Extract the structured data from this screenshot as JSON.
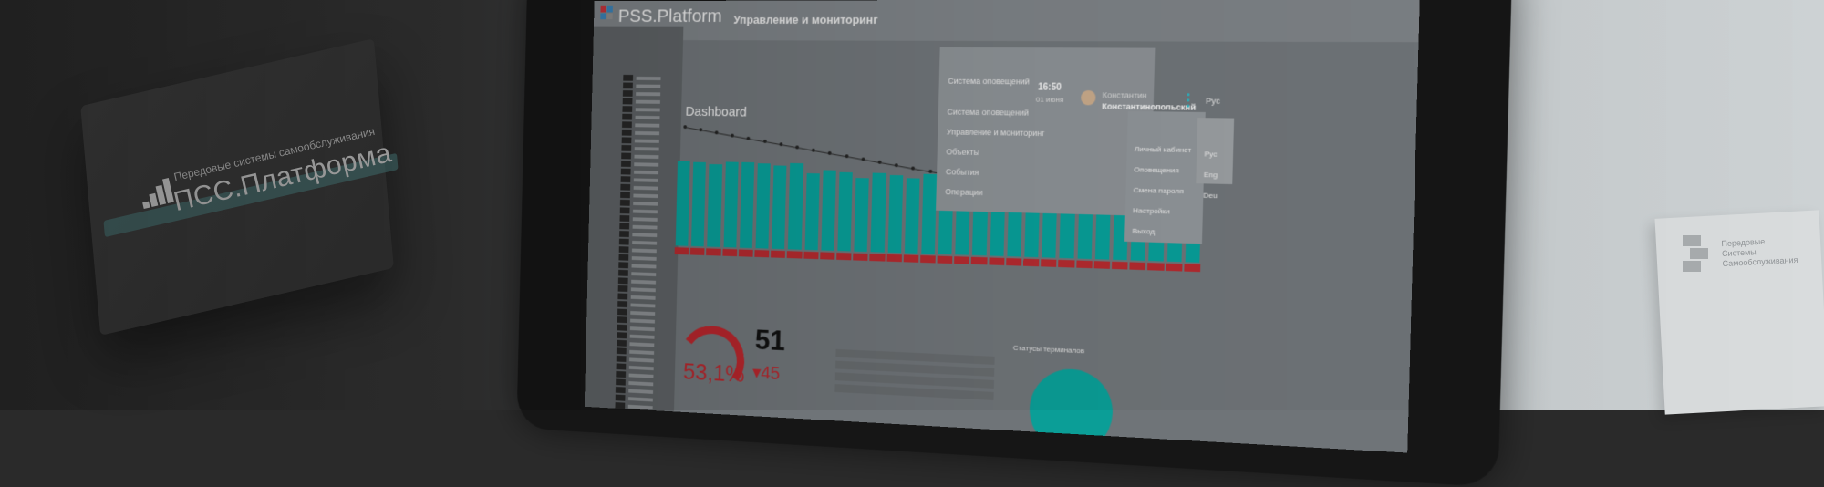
{
  "box": {
    "tagline": "Передовые системы самообслуживания",
    "brand": "ПСС.Платформа"
  },
  "app": {
    "title": "PSS.Platform",
    "page_title": "Управление и мониторинг",
    "dashboard_title": "Dashboard"
  },
  "header": {
    "menu_head": "Система оповещений",
    "time": "16:50",
    "date": "01 июня",
    "user_first": "Константин",
    "user_last": "Константинопольский",
    "lang_current": "Рус"
  },
  "main_menu": [
    "Система оповещений",
    "Управление и мониторинг",
    "Объекты",
    "События",
    "Операции"
  ],
  "user_menu": [
    "Личный кабинет",
    "Оповещения",
    "Смена пароля",
    "Настройки",
    "Выход"
  ],
  "languages": [
    "Рус",
    "Eng",
    "Deu"
  ],
  "kpi": {
    "percent": "53,1%",
    "count": "51",
    "delta": "▾45"
  },
  "status_title": "Статусы терминалов",
  "paper": {
    "name_l1": "Передовые",
    "name_l2": "Системы",
    "name_l3": "Самообслуживания"
  },
  "chart_data": {
    "type": "bar",
    "values": [
      62,
      61,
      60,
      62,
      62,
      61,
      60,
      62,
      55,
      57,
      56,
      52,
      56,
      55,
      53,
      56,
      53,
      52,
      50,
      50,
      48,
      50,
      48,
      47,
      44,
      48,
      48,
      47,
      48,
      45,
      40
    ],
    "line": [
      100,
      99,
      98,
      97,
      96,
      95,
      94,
      93,
      92,
      91,
      90,
      89,
      88,
      87,
      86,
      85,
      84,
      83,
      82,
      81,
      80,
      79,
      78,
      77,
      76,
      75,
      74,
      73,
      72,
      71,
      70
    ],
    "colors": {
      "bar": "#089e98",
      "band": "#b32a2f",
      "line": "#2a2a2a"
    }
  }
}
